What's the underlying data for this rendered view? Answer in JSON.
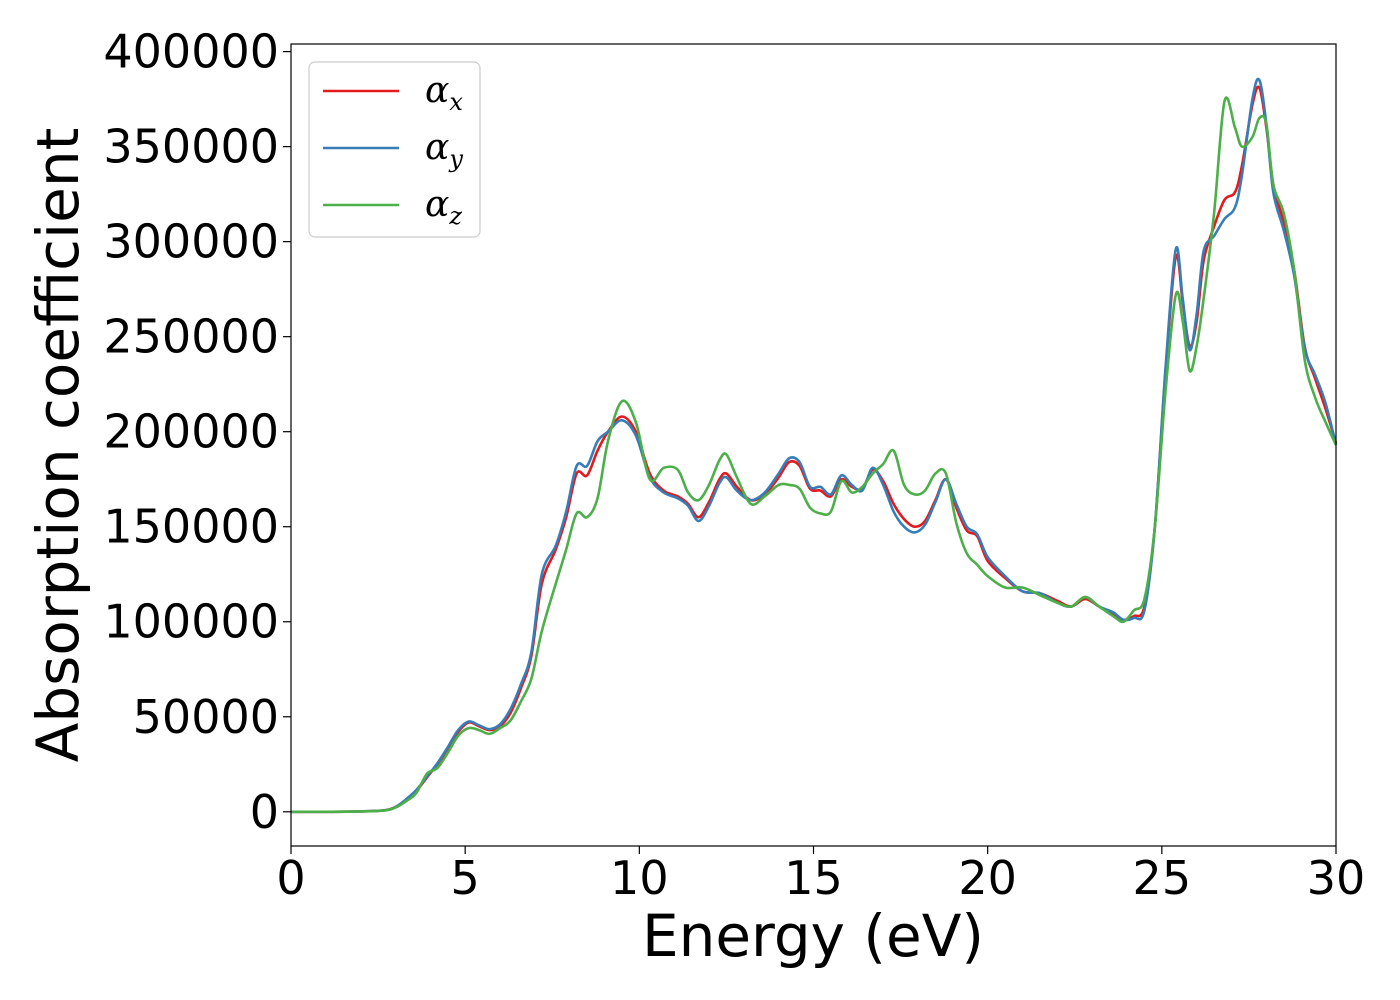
{
  "chart_data": {
    "type": "line",
    "xlabel": "Energy (eV)",
    "ylabel": "Absorption coefficient",
    "xlim": [
      0,
      30
    ],
    "ylim": [
      -18000,
      404000
    ],
    "xticks": [
      0,
      5,
      10,
      15,
      20,
      25,
      30
    ],
    "yticks": [
      0,
      50000,
      100000,
      150000,
      200000,
      250000,
      300000,
      350000,
      400000
    ],
    "grid": false,
    "legend_position": "top-left",
    "series": [
      {
        "name": "α",
        "subscript": "x",
        "color": "#e41a1c",
        "x": [
          0,
          1,
          2,
          2.7,
          3.0,
          3.3,
          3.6,
          3.9,
          4.2,
          4.5,
          4.8,
          5.1,
          5.4,
          5.7,
          6.0,
          6.3,
          6.6,
          6.9,
          7.2,
          7.6,
          7.9,
          8.2,
          8.5,
          8.8,
          9.1,
          9.5,
          9.9,
          10.3,
          10.7,
          11.1,
          11.4,
          11.7,
          12.0,
          12.3,
          12.5,
          12.8,
          13.2,
          13.6,
          14.0,
          14.3,
          14.6,
          14.9,
          15.2,
          15.5,
          15.8,
          16.1,
          16.4,
          16.7,
          17.0,
          17.3,
          17.6,
          17.9,
          18.2,
          18.5,
          18.8,
          19.1,
          19.4,
          19.7,
          20.0,
          20.5,
          21.0,
          21.5,
          22.0,
          22.4,
          22.8,
          23.2,
          23.6,
          23.9,
          24.2,
          24.5,
          24.8,
          25.1,
          25.4,
          25.6,
          25.8,
          26.0,
          26.2,
          26.5,
          26.8,
          27.1,
          27.3,
          27.6,
          27.8,
          28.0,
          28.2,
          28.5,
          28.8,
          29.1,
          29.4,
          29.7,
          30.0
        ],
        "y": [
          0,
          0,
          200,
          800,
          2500,
          6000,
          11000,
          18000,
          25000,
          33000,
          42000,
          47000,
          45000,
          43000,
          45000,
          52000,
          65000,
          82000,
          120000,
          138000,
          155000,
          178000,
          177000,
          190000,
          200000,
          208000,
          200000,
          178000,
          169000,
          166000,
          162000,
          155000,
          163000,
          175000,
          178000,
          171000,
          164000,
          167000,
          176000,
          184000,
          182000,
          170000,
          169000,
          166000,
          175000,
          171000,
          170000,
          180000,
          174000,
          162000,
          154000,
          150000,
          153000,
          164000,
          175000,
          160000,
          148000,
          145000,
          132000,
          123000,
          116000,
          115000,
          111000,
          108000,
          112000,
          108000,
          104000,
          101000,
          103000,
          108000,
          150000,
          230000,
          292000,
          268000,
          245000,
          258000,
          290000,
          308000,
          322000,
          326000,
          340000,
          372000,
          381000,
          360000,
          330000,
          310000,
          285000,
          245000,
          228000,
          212000,
          194000
        ]
      },
      {
        "name": "α",
        "subscript": "y",
        "color": "#377eb8",
        "x": [
          0,
          1,
          2,
          2.7,
          3.0,
          3.3,
          3.6,
          3.9,
          4.2,
          4.5,
          4.8,
          5.1,
          5.4,
          5.7,
          6.0,
          6.3,
          6.6,
          6.9,
          7.2,
          7.6,
          7.9,
          8.2,
          8.5,
          8.8,
          9.1,
          9.5,
          9.9,
          10.3,
          10.7,
          11.1,
          11.4,
          11.7,
          12.0,
          12.3,
          12.5,
          12.8,
          13.2,
          13.6,
          14.0,
          14.3,
          14.6,
          14.9,
          15.2,
          15.5,
          15.8,
          16.1,
          16.4,
          16.7,
          17.0,
          17.3,
          17.6,
          17.9,
          18.2,
          18.5,
          18.8,
          19.1,
          19.4,
          19.7,
          20.0,
          20.5,
          21.0,
          21.5,
          22.0,
          22.4,
          22.8,
          23.2,
          23.6,
          23.9,
          24.2,
          24.5,
          24.8,
          25.1,
          25.4,
          25.6,
          25.8,
          26.0,
          26.2,
          26.5,
          26.8,
          27.1,
          27.3,
          27.6,
          27.8,
          28.0,
          28.2,
          28.5,
          28.8,
          29.1,
          29.4,
          29.7,
          30.0
        ],
        "y": [
          0,
          0,
          200,
          800,
          2500,
          6500,
          11500,
          18500,
          25500,
          34000,
          43000,
          47500,
          45500,
          43500,
          46000,
          54000,
          67000,
          84000,
          125000,
          140000,
          158000,
          182000,
          182000,
          195000,
          200000,
          206000,
          198000,
          176000,
          168000,
          165000,
          161000,
          153000,
          161000,
          173000,
          176000,
          169000,
          164000,
          168000,
          178000,
          186000,
          184000,
          171000,
          171000,
          167000,
          177000,
          172000,
          169000,
          181000,
          172000,
          158000,
          150000,
          147000,
          151000,
          163000,
          175000,
          162000,
          150000,
          146000,
          134000,
          124000,
          116000,
          115000,
          110000,
          108000,
          113000,
          108000,
          105000,
          101000,
          102000,
          106000,
          150000,
          232000,
          296000,
          270000,
          243000,
          262000,
          295000,
          303000,
          312000,
          318000,
          335000,
          375000,
          385000,
          362000,
          326000,
          306000,
          282000,
          244000,
          230000,
          215000,
          193000
        ]
      },
      {
        "name": "α",
        "subscript": "z",
        "color": "#4daf4a",
        "x": [
          0,
          1,
          2,
          2.7,
          3.0,
          3.3,
          3.6,
          3.9,
          4.2,
          4.5,
          4.8,
          5.1,
          5.4,
          5.7,
          6.0,
          6.3,
          6.6,
          6.9,
          7.2,
          7.6,
          7.9,
          8.2,
          8.5,
          8.8,
          9.1,
          9.5,
          9.9,
          10.3,
          10.7,
          11.1,
          11.4,
          11.7,
          12.0,
          12.3,
          12.5,
          12.8,
          13.2,
          13.6,
          14.0,
          14.3,
          14.6,
          14.9,
          15.2,
          15.5,
          15.8,
          16.1,
          16.4,
          16.7,
          17.0,
          17.3,
          17.6,
          17.9,
          18.2,
          18.5,
          18.8,
          19.1,
          19.4,
          19.7,
          20.0,
          20.5,
          21.0,
          21.5,
          22.0,
          22.4,
          22.8,
          23.2,
          23.6,
          23.9,
          24.2,
          24.5,
          24.8,
          25.1,
          25.4,
          25.6,
          25.8,
          26.0,
          26.2,
          26.5,
          26.8,
          27.1,
          27.3,
          27.6,
          27.8,
          28.0,
          28.2,
          28.5,
          28.8,
          29.1,
          29.4,
          29.7,
          30.0
        ],
        "y": [
          0,
          0,
          200,
          700,
          2200,
          5500,
          10000,
          20000,
          23000,
          31000,
          40000,
          44000,
          43000,
          41000,
          44000,
          48000,
          58000,
          70000,
          95000,
          120000,
          138000,
          157000,
          155000,
          165000,
          195000,
          216000,
          205000,
          175000,
          181000,
          180000,
          168000,
          164000,
          172000,
          185000,
          188000,
          176000,
          162000,
          166000,
          172000,
          172000,
          170000,
          160000,
          157000,
          158000,
          174000,
          168000,
          171000,
          178000,
          183000,
          190000,
          172000,
          167000,
          169000,
          178000,
          178000,
          152000,
          136000,
          130000,
          124000,
          118000,
          118000,
          114000,
          110000,
          108000,
          113000,
          108000,
          103000,
          100000,
          106000,
          112000,
          150000,
          220000,
          272000,
          258000,
          232000,
          245000,
          270000,
          315000,
          374000,
          360000,
          350000,
          355000,
          365000,
          362000,
          330000,
          315000,
          285000,
          238000,
          218000,
          205000,
          193000
        ]
      }
    ]
  }
}
